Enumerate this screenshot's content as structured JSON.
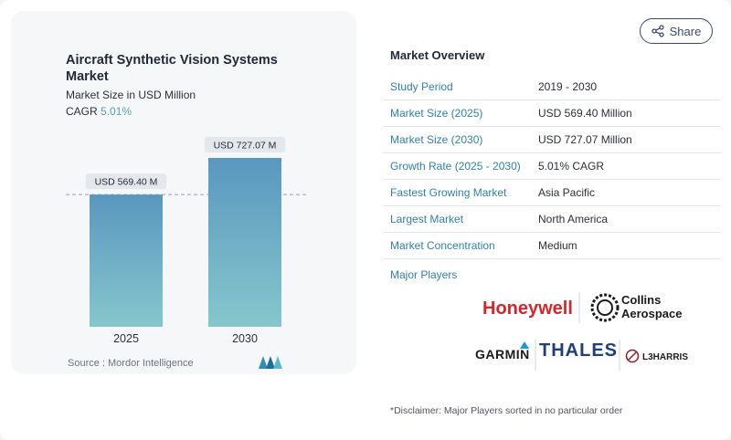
{
  "chart_data": {
    "type": "bar",
    "title": "Aircraft Synthetic Vision Systems Market",
    "subtitle": "Market Size in USD Million",
    "cagr_label": "CAGR",
    "cagr_value": "5.01%",
    "categories": [
      "2025",
      "2030"
    ],
    "values": [
      569.4,
      727.07
    ],
    "data_labels": [
      "USD 569.40 M",
      "USD 727.07 M"
    ],
    "ylim": [
      0,
      800
    ],
    "reference_line_value": 569.4,
    "bar_color_top": "#5a97bf",
    "bar_color_bottom": "#86c7cc",
    "source": "Source :  Mordor Intelligence"
  },
  "share": {
    "label": "Share",
    "icon": "share-icon"
  },
  "overview": {
    "title": "Market Overview",
    "rows": [
      {
        "label": "Study Period",
        "value": "2019 - 2030"
      },
      {
        "label": "Market Size (2025)",
        "value": "USD 569.40 Million"
      },
      {
        "label": "Market Size (2030)",
        "value": "USD 727.07 Million"
      },
      {
        "label": "Growth Rate (2025 - 2030)",
        "value": "5.01% CAGR"
      },
      {
        "label": "Fastest Growing Market",
        "value": "Asia Pacific"
      },
      {
        "label": "Largest Market",
        "value": "North America"
      },
      {
        "label": "Market Concentration",
        "value": "Medium"
      }
    ]
  },
  "players": {
    "title": "Major Players",
    "logos": [
      "Honeywell",
      "Collins",
      "Aerospace",
      "GARMIN",
      "THALES",
      "L3HARRIS"
    ]
  },
  "disclaimer": "*Disclaimer: Major Players sorted in no particular order",
  "colors": {
    "accent": "#2f80a8",
    "cagr": "#5a9db3",
    "honeywell": "#d9252a"
  }
}
